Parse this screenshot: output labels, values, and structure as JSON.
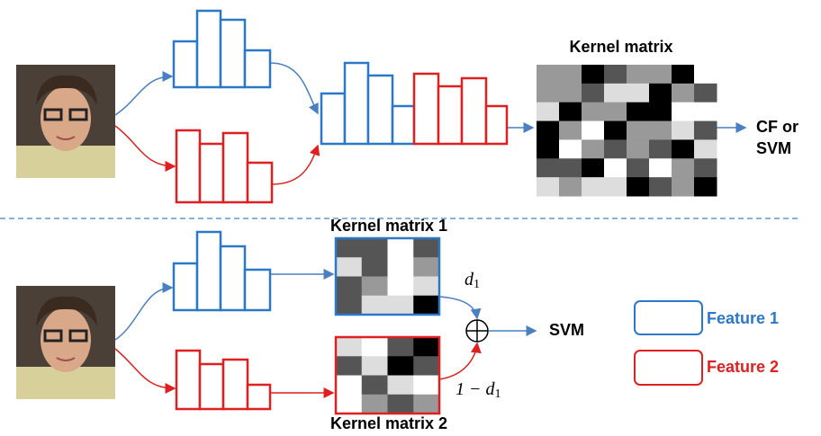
{
  "top": {
    "kernel_title": "Kernel matrix",
    "output": [
      "CF or",
      "SVM"
    ]
  },
  "bottom": {
    "kernel_1_title": "Kernel matrix 1",
    "kernel_2_title": "Kernel matrix 2",
    "weight_1": {
      "symbol": "d",
      "subscript": "1"
    },
    "weight_2": {
      "symbol": "1 − d",
      "subscript": "1"
    },
    "output": "SVM"
  },
  "legend": [
    "Feature 1",
    "Feature 2"
  ]
}
